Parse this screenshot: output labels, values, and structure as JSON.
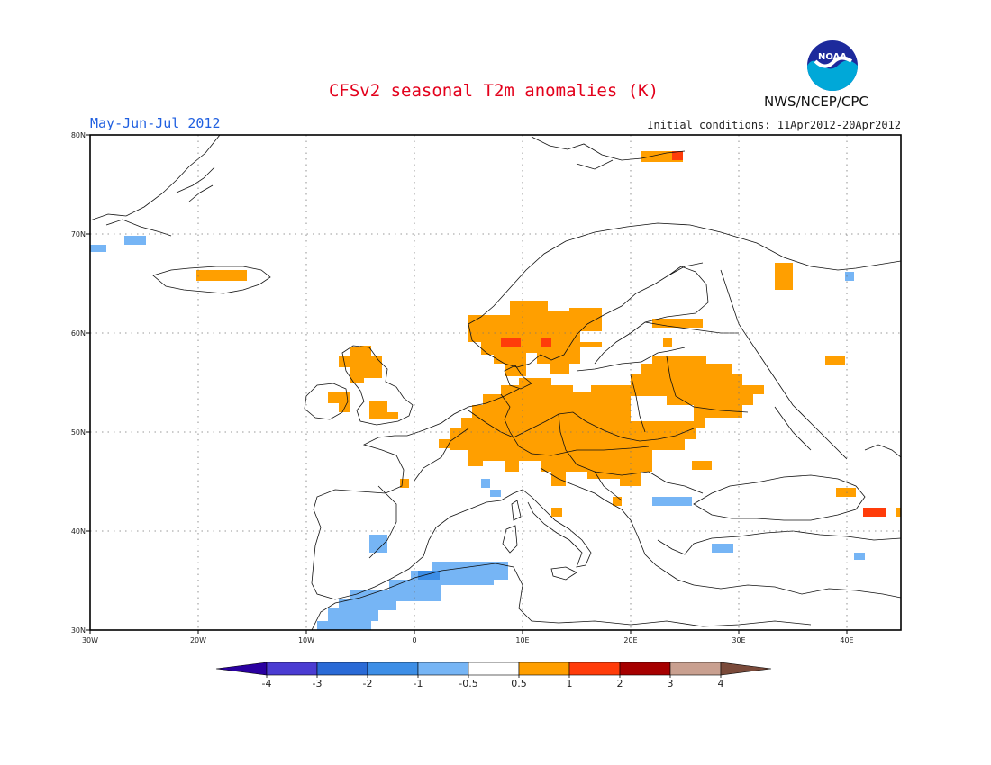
{
  "header": {
    "title": "CFSv2 seasonal T2m anomalies (K)",
    "period": "May-Jun-Jul 2012",
    "initial_conditions": "Initial conditions: 11Apr2012-20Apr2012",
    "agency": "NWS/NCEP/CPC",
    "logo_text": "NOAA"
  },
  "map": {
    "lon_range": [
      -30,
      45
    ],
    "lat_range": [
      30,
      80
    ],
    "lon_ticks": [
      "30W",
      "20W",
      "10W",
      "0",
      "10E",
      "20E",
      "30E",
      "40E"
    ],
    "lat_ticks": [
      "30N",
      "40N",
      "50N",
      "60N",
      "70N",
      "80N"
    ],
    "grid": "dotted",
    "anomaly_regions": [
      {
        "name": "central-europe",
        "class": "0.5 to 1",
        "color": "#ff9f00"
      },
      {
        "name": "southern-scandinavia",
        "class": "0.5 to 1",
        "color": "#ff9f00"
      },
      {
        "name": "northwest-africa",
        "class": "-1 to -0.5",
        "color": "#76b5f5"
      },
      {
        "name": "iceland",
        "class": "0.5 to 1",
        "color": "#ff9f00"
      },
      {
        "name": "svalbard",
        "class": "0.5 to 1",
        "color": "#ff9f00"
      },
      {
        "name": "black-sea-east",
        "class": "1 to 2",
        "color": "#ff3c0a"
      }
    ]
  },
  "colorbar": {
    "labels": [
      "-4",
      "-3",
      "-2",
      "-1",
      "-0.5",
      "0.5",
      "1",
      "2",
      "3",
      "4"
    ],
    "colors": [
      "#2a00a0",
      "#4b3cd2",
      "#2a6ad6",
      "#3d8ee6",
      "#76b5f5",
      "#ffffff",
      "#ff9f00",
      "#ff3c0a",
      "#a60000",
      "#c9a090",
      "#7a4a3a"
    ]
  }
}
